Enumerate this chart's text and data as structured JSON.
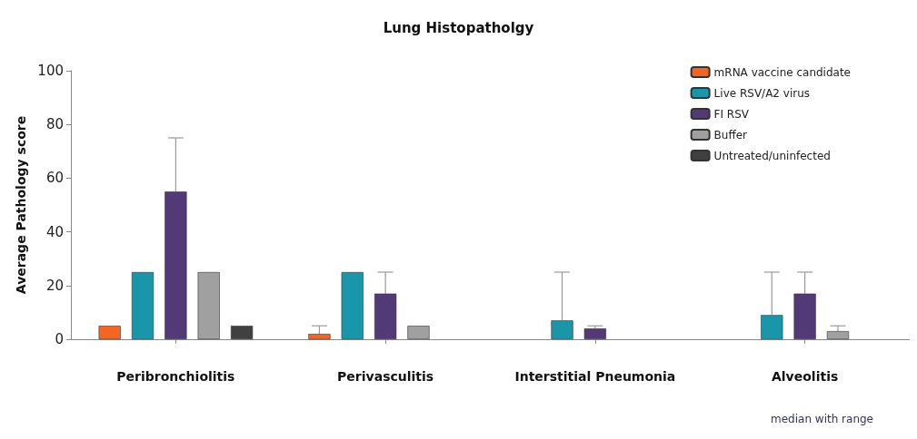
{
  "chart_data": {
    "type": "bar",
    "title": "Lung Histopatholgy",
    "ylabel": "Average Pathology score",
    "categories": [
      "Peribronchiolitis",
      "Perivasculitis",
      "Interstitial Pneumonia",
      "Alveolitis"
    ],
    "series": [
      {
        "name": "mRNA vaccine candidate",
        "color": "#f26522",
        "values": [
          5,
          2,
          null,
          null
        ],
        "errors": [
          null,
          [
            2,
            5
          ],
          null,
          null
        ]
      },
      {
        "name": "Live RSV/A2 virus",
        "color": "#1a96ab",
        "values": [
          25,
          25,
          7,
          9
        ],
        "errors": [
          null,
          null,
          [
            7,
            25
          ],
          [
            9,
            25
          ]
        ]
      },
      {
        "name": "FI RSV",
        "color": "#523a76",
        "values": [
          55,
          17,
          4,
          17
        ],
        "errors": [
          [
            55,
            75
          ],
          [
            17,
            25
          ],
          [
            4,
            5
          ],
          [
            17,
            25
          ]
        ]
      },
      {
        "name": "Buffer",
        "color": "#a0a0a0",
        "values": [
          25,
          5,
          null,
          3
        ],
        "errors": [
          null,
          null,
          null,
          [
            3,
            5
          ]
        ]
      },
      {
        "name": "Untreated/uninfected",
        "color": "#404040",
        "values": [
          5,
          null,
          null,
          null
        ],
        "errors": [
          null,
          null,
          null,
          null
        ]
      }
    ],
    "ylim": [
      0,
      100
    ],
    "yticks": [
      0,
      20,
      40,
      60,
      80,
      100
    ],
    "legend": "top right",
    "grid": false,
    "annotations": [
      "median with range"
    ]
  }
}
